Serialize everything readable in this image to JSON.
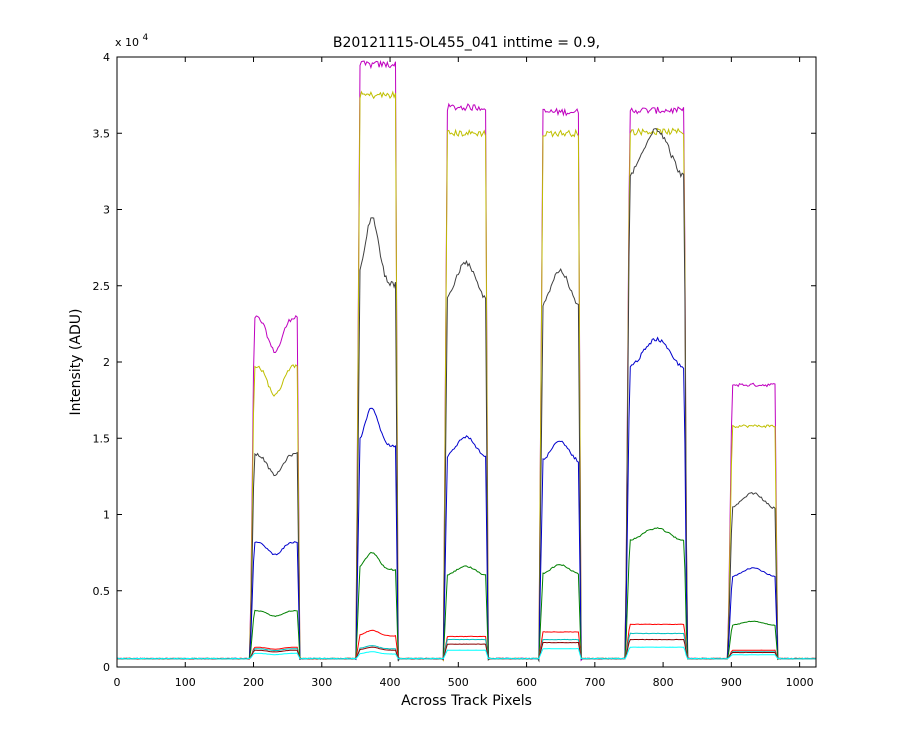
{
  "chart_data": {
    "type": "line",
    "title": "B20121115-OL455_041 inttime = 0.9,",
    "xlabel": "Across Track Pixels",
    "ylabel": "Intensity (ADU)",
    "y_exponent_label": "x 10",
    "y_exponent_power": "4",
    "xlim": [
      0,
      1024
    ],
    "ylim": [
      0,
      40000
    ],
    "grid": false,
    "legend": "none",
    "x_ticks": [
      0,
      100,
      200,
      300,
      400,
      500,
      600,
      700,
      800,
      900,
      1000
    ],
    "y_ticks": [
      0,
      5000,
      10000,
      15000,
      20000,
      25000,
      30000,
      35000,
      40000
    ],
    "x_tick_labels": [
      "0",
      "100",
      "200",
      "300",
      "400",
      "500",
      "600",
      "700",
      "800",
      "900",
      "1000"
    ],
    "y_tick_labels": [
      "0",
      "0.5",
      "1",
      "1.5",
      "2",
      "2.5",
      "3",
      "3.5",
      "4"
    ],
    "baseline": 550,
    "blocks": [
      {
        "start": 195,
        "end": 268
      },
      {
        "start": 350,
        "end": 412
      },
      {
        "start": 478,
        "end": 544
      },
      {
        "start": 618,
        "end": 680
      },
      {
        "start": 745,
        "end": 835
      },
      {
        "start": 895,
        "end": 968
      }
    ],
    "series": [
      {
        "color": "#bf00bf",
        "peaks": [
          23000,
          39500,
          36700,
          36400,
          36500,
          18500
        ]
      },
      {
        "color": "#bfbf00",
        "peaks": [
          19800,
          37500,
          35000,
          35000,
          35100,
          15800
        ]
      },
      {
        "color": "#404040",
        "peaks": [
          14000,
          29500,
          26500,
          26000,
          35300,
          11400
        ]
      },
      {
        "color": "#0000cc",
        "peaks": [
          8200,
          17000,
          15100,
          14800,
          21500,
          6500
        ]
      },
      {
        "color": "#008000",
        "peaks": [
          3700,
          7500,
          6600,
          6700,
          9100,
          3000
        ]
      },
      {
        "color": "#ff0000",
        "peaks": [
          1300,
          2400,
          2000,
          2300,
          2800,
          1100
        ]
      },
      {
        "color": "#00bfbf",
        "peaks": [
          1200,
          1400,
          1800,
          1800,
          2200,
          1000
        ]
      },
      {
        "color": "#8b0000",
        "peaks": [
          1100,
          1300,
          1500,
          1600,
          1800,
          950
        ]
      },
      {
        "color": "#00ffff",
        "peaks": [
          900,
          1000,
          1100,
          1200,
          1300,
          800
        ]
      }
    ]
  }
}
